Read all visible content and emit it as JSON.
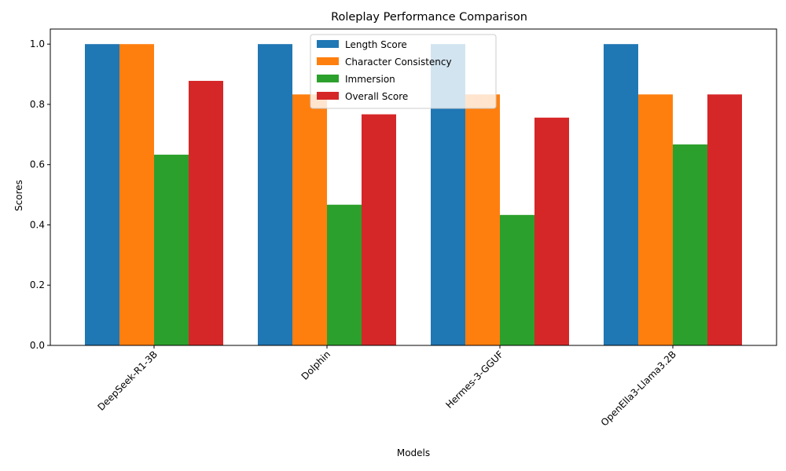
{
  "chart_data": {
    "type": "bar",
    "title": "Roleplay Performance Comparison",
    "xlabel": "Models",
    "ylabel": "Scores",
    "categories": [
      "DeepSeek-R1-3B",
      "Dolphin",
      "Hermes-3-GGUF",
      "OpenElla3-Llama3.2B"
    ],
    "series": [
      {
        "name": "Length Score",
        "color": "#1f77b4",
        "values": [
          1.0,
          1.0,
          1.0,
          1.0
        ]
      },
      {
        "name": "Character Consistency",
        "color": "#ff7f0e",
        "values": [
          1.0,
          0.833,
          0.833,
          0.833
        ]
      },
      {
        "name": "Immersion",
        "color": "#2ca02c",
        "values": [
          0.633,
          0.467,
          0.433,
          0.667
        ]
      },
      {
        "name": "Overall Score",
        "color": "#d62728",
        "values": [
          0.878,
          0.767,
          0.756,
          0.833
        ]
      }
    ],
    "yticks": [
      "0.0",
      "0.2",
      "0.4",
      "0.6",
      "0.8",
      "1.0"
    ],
    "ylim": [
      0,
      1.05
    ],
    "grid": false,
    "legend_position": "top-center"
  }
}
